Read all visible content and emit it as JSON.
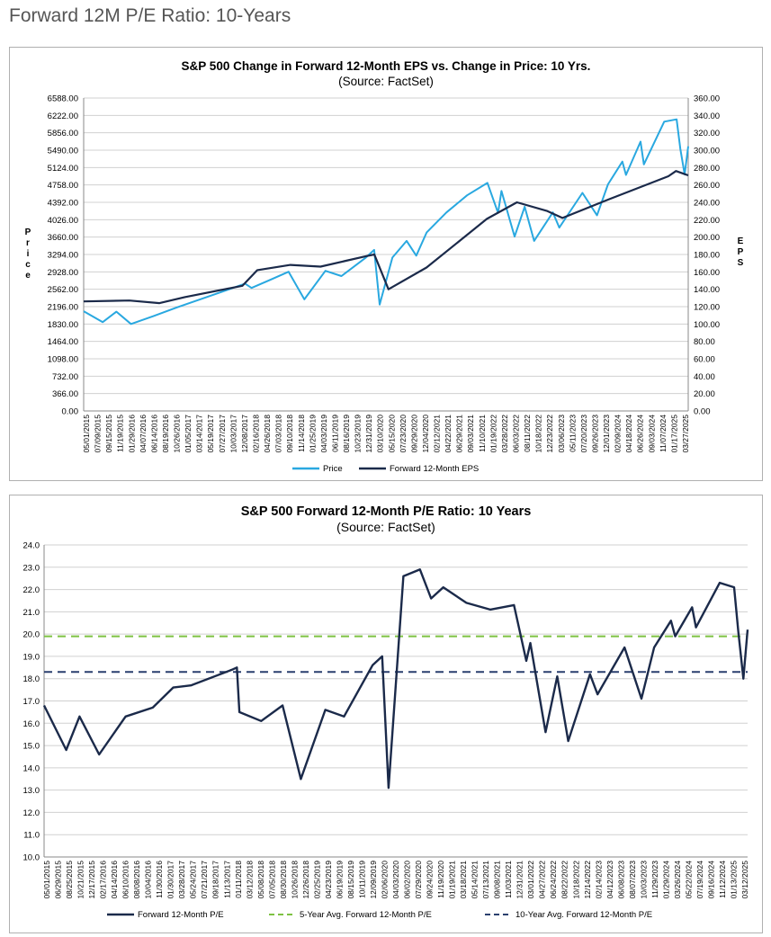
{
  "page": {
    "title": "Forward 12M P/E Ratio: 10-Years"
  },
  "colors": {
    "price": "#29a8e0",
    "eps": "#1b2a4a",
    "pe": "#1b2a4a",
    "avg5": "#7dc242",
    "avg10": "#2a3f6e",
    "grid": "#d0d0d0"
  },
  "chart_data": [
    {
      "type": "line",
      "title": "S&P 500 Change in Forward 12-Month EPS vs. Change in Price: 10 Yrs.",
      "subtitle": "(Source: FactSet)",
      "ylabel_left": "Price",
      "ylabel_right": "EPS",
      "ylim_left": [
        0,
        6588
      ],
      "ylim_right": [
        0,
        360
      ],
      "yticks_left": [
        "6588.00",
        "6222.00",
        "5856.00",
        "5490.00",
        "5124.00",
        "4758.00",
        "4392.00",
        "4026.00",
        "3660.00",
        "3294.00",
        "2928.00",
        "2562.00",
        "2196.00",
        "1830.00",
        "1464.00",
        "1098.00",
        "732.00",
        "366.00",
        "0.00"
      ],
      "yticks_right": [
        "360.00",
        "340.00",
        "320.00",
        "300.00",
        "280.00",
        "260.00",
        "240.00",
        "220.00",
        "200.00",
        "180.00",
        "160.00",
        "140.00",
        "120.00",
        "100.00",
        "80.00",
        "60.00",
        "40.00",
        "20.00",
        "0.00"
      ],
      "xticks": [
        "05/01/2015",
        "07/09/2015",
        "09/15/2015",
        "11/19/2015",
        "01/29/2016",
        "04/07/2016",
        "06/14/2016",
        "08/19/2016",
        "10/26/2016",
        "01/05/2017",
        "03/14/2017",
        "05/19/2017",
        "07/27/2017",
        "10/03/2017",
        "12/08/2017",
        "02/16/2018",
        "04/26/2018",
        "07/03/2018",
        "09/10/2018",
        "11/14/2018",
        "01/25/2019",
        "04/03/2019",
        "06/11/2019",
        "08/16/2019",
        "10/23/2019",
        "12/31/2019",
        "03/10/2020",
        "05/15/2020",
        "07/23/2020",
        "09/29/2020",
        "12/04/2020",
        "02/12/2021",
        "04/22/2021",
        "06/29/2021",
        "09/03/2021",
        "11/10/2021",
        "01/19/2022",
        "03/28/2022",
        "06/03/2022",
        "08/11/2022",
        "10/18/2022",
        "12/23/2022",
        "03/06/2023",
        "05/11/2023",
        "07/20/2023",
        "09/26/2023",
        "12/01/2023",
        "02/09/2024",
        "04/18/2024",
        "06/26/2024",
        "09/03/2024",
        "11/07/2024",
        "01/17/2025",
        "03/27/2025"
      ],
      "x_range": [
        "2015-05-01",
        "2025-04-30"
      ],
      "series": [
        {
          "name": "Price",
          "x": [
            "2015-05-01",
            "2015-08-24",
            "2015-11-15",
            "2016-02-11",
            "2016-06-27",
            "2016-11-15",
            "2017-06-01",
            "2017-12-31",
            "2018-02-08",
            "2018-06-01",
            "2018-09-20",
            "2018-12-24",
            "2019-04-30",
            "2019-08-05",
            "2019-12-31",
            "2020-02-19",
            "2020-03-23",
            "2020-06-08",
            "2020-09-02",
            "2020-10-30",
            "2021-01-01",
            "2021-05-01",
            "2021-09-02",
            "2022-01-03",
            "2022-03-08",
            "2022-03-29",
            "2022-06-16",
            "2022-08-16",
            "2022-10-12",
            "2023-02-02",
            "2023-03-13",
            "2023-07-31",
            "2023-10-27",
            "2024-01-01",
            "2024-03-28",
            "2024-04-19",
            "2024-07-16",
            "2024-08-05",
            "2024-12-06",
            "2025-02-19",
            "2025-03-13",
            "2025-04-08",
            "2025-04-30"
          ],
          "y": [
            2100,
            1870,
            2090,
            1830,
            2000,
            2180,
            2420,
            2680,
            2590,
            2760,
            2930,
            2350,
            2950,
            2840,
            3230,
            3390,
            2240,
            3230,
            3580,
            3270,
            3760,
            4180,
            4540,
            4800,
            4170,
            4630,
            3670,
            4300,
            3580,
            4180,
            3860,
            4590,
            4120,
            4770,
            5250,
            4970,
            5670,
            5190,
            6090,
            6140,
            5520,
            4980,
            5570
          ]
        },
        {
          "name": "Forward 12-Month EPS",
          "x": [
            "2015-05-01",
            "2016-02-01",
            "2016-08-01",
            "2017-01-01",
            "2017-12-15",
            "2018-03-15",
            "2018-10-01",
            "2019-04-01",
            "2019-12-31",
            "2020-02-20",
            "2020-05-15",
            "2020-12-31",
            "2021-12-31",
            "2022-06-30",
            "2022-12-31",
            "2023-04-01",
            "2023-12-31",
            "2024-12-31",
            "2025-02-15",
            "2025-04-30"
          ],
          "y": [
            126,
            127,
            124,
            131,
            144,
            162,
            168,
            166,
            178,
            180,
            140,
            165,
            221,
            240,
            230,
            222,
            243,
            270,
            276,
            271
          ]
        }
      ]
    },
    {
      "type": "line",
      "title": "S&P 500 Forward 12-Month P/E Ratio: 10 Years",
      "subtitle": "(Source: FactSet)",
      "ylim": [
        10,
        24
      ],
      "yticks": [
        "24.0",
        "23.0",
        "22.0",
        "21.0",
        "20.0",
        "19.0",
        "18.0",
        "17.0",
        "16.0",
        "15.0",
        "14.0",
        "13.0",
        "12.0",
        "11.0",
        "10.0"
      ],
      "xticks": [
        "05/01/2015",
        "06/29/2015",
        "08/25/2015",
        "10/21/2015",
        "12/17/2015",
        "02/17/2016",
        "04/14/2016",
        "06/10/2016",
        "08/08/2016",
        "10/04/2016",
        "11/30/2016",
        "01/30/2017",
        "03/28/2017",
        "05/24/2017",
        "07/21/2017",
        "09/18/2017",
        "11/13/2017",
        "01/11/2018",
        "03/12/2018",
        "05/08/2018",
        "07/05/2018",
        "08/30/2018",
        "10/26/2018",
        "12/26/2018",
        "02/25/2019",
        "04/23/2019",
        "06/19/2019",
        "08/15/2019",
        "10/11/2019",
        "12/09/2019",
        "02/06/2020",
        "04/03/2020",
        "06/02/2020",
        "07/29/2020",
        "09/24/2020",
        "11/19/2020",
        "01/19/2021",
        "03/18/2021",
        "05/14/2021",
        "07/13/2021",
        "09/08/2021",
        "11/03/2021",
        "12/31/2021",
        "03/01/2022",
        "04/27/2022",
        "06/24/2022",
        "08/22/2022",
        "10/18/2022",
        "12/14/2022",
        "02/14/2023",
        "04/12/2023",
        "06/08/2023",
        "08/07/2023",
        "10/03/2023",
        "11/29/2023",
        "01/29/2024",
        "03/26/2024",
        "05/22/2024",
        "07/19/2024",
        "09/16/2024",
        "11/12/2024",
        "01/13/2025",
        "03/12/2025"
      ],
      "x_range": [
        "2015-05-01",
        "2025-04-30"
      ],
      "series": [
        {
          "name": "Forward 12-Month P/E",
          "x": [
            "2015-05-01",
            "2015-08-24",
            "2015-11-01",
            "2016-02-11",
            "2016-06-27",
            "2016-11-15",
            "2017-03-01",
            "2017-06-01",
            "2017-12-31",
            "2018-01-26",
            "2018-02-08",
            "2018-06-01",
            "2018-09-20",
            "2018-12-24",
            "2019-04-30",
            "2019-08-05",
            "2019-12-31",
            "2020-02-19",
            "2020-03-23",
            "2020-06-08",
            "2020-09-02",
            "2020-10-30",
            "2021-01-01",
            "2021-05-01",
            "2021-09-02",
            "2022-01-03",
            "2022-03-08",
            "2022-03-29",
            "2022-06-16",
            "2022-08-16",
            "2022-10-12",
            "2023-02-02",
            "2023-03-13",
            "2023-07-31",
            "2023-10-27",
            "2024-01-01",
            "2024-03-28",
            "2024-04-19",
            "2024-07-16",
            "2024-08-05",
            "2024-12-06",
            "2025-02-19",
            "2025-03-13",
            "2025-04-08",
            "2025-04-30"
          ],
          "y": [
            16.8,
            14.8,
            16.3,
            14.6,
            16.3,
            16.7,
            17.6,
            17.7,
            18.4,
            18.5,
            16.5,
            16.1,
            16.8,
            13.5,
            16.6,
            16.3,
            18.6,
            19.0,
            13.1,
            22.6,
            22.9,
            21.6,
            22.1,
            21.4,
            21.1,
            21.3,
            18.8,
            19.6,
            15.6,
            18.1,
            15.2,
            18.2,
            17.3,
            19.4,
            17.1,
            19.4,
            20.6,
            19.9,
            21.2,
            20.3,
            22.3,
            22.1,
            20.1,
            18.0,
            20.2
          ]
        },
        {
          "name": "5-Year Avg. Forward 12-Month P/E",
          "value": 19.9
        },
        {
          "name": "10-Year Avg. Forward 12-Month P/E",
          "value": 18.3
        }
      ]
    }
  ]
}
